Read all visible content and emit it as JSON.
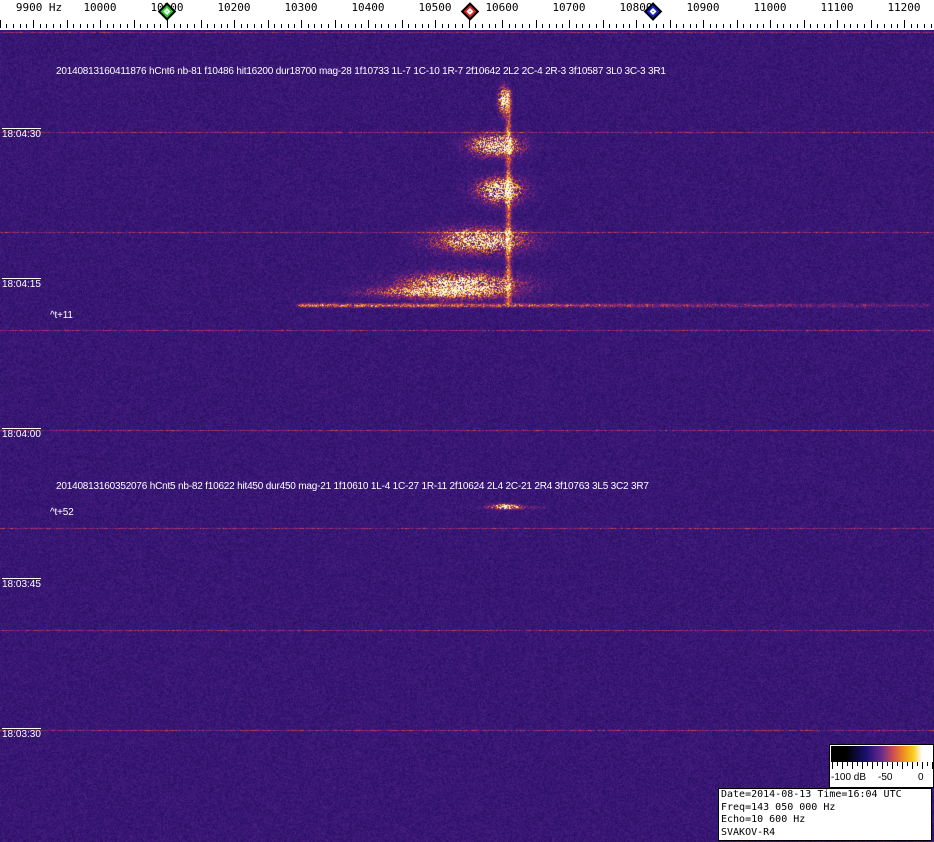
{
  "chart_data": {
    "type": "heatmap",
    "xlabel_unit": "Hz",
    "x_ticks": [
      "9900 Hz",
      "10000",
      "10100",
      "10200",
      "10300",
      "10400",
      "10500",
      "10600",
      "10700",
      "10800",
      "10900",
      "11000",
      "11100",
      "11200"
    ],
    "xlim": [
      9850,
      11250
    ],
    "markers": [
      {
        "freq": 10100,
        "color": "#22cc22"
      },
      {
        "freq": 10552,
        "color": "#dd2222"
      },
      {
        "freq": 10825,
        "color": "#1122cc"
      }
    ],
    "y_ticks": [
      "18:04:30",
      "18:04:15",
      "18:04:00",
      "18:03:45",
      "18:03:30"
    ],
    "colorscale": {
      "min_label": "-100 dB",
      "mid_label": "-50",
      "max_label": "0"
    },
    "detections": [
      {
        "text": "20140813160411876 hCnt6 nb-81 f10486 hit16200 dur18700 mag-28 1f10733 1L-7 1C-10 1R-7 2f10642 2L2 2C-4 2R-3 3f10587 3L0 3C-3 3R1",
        "offset": "^t+11"
      },
      {
        "text": "20140813160352076 hCnt5 nb-82 f10622 hit450 dur450 mag-21 1f10610 1L-4 1C-27 1R-11 2f10624 2L4 2C-21 2R4 3f10763 3L5 3C2 3R7",
        "offset": "^t+52"
      }
    ]
  },
  "info": {
    "line1": "Date=2014-08-13 Time=16:04 UTC",
    "line2": "Freq=143 050 000 Hz",
    "line3": "Echo=10 600 Hz",
    "line4": "SVAKOV-R4"
  }
}
